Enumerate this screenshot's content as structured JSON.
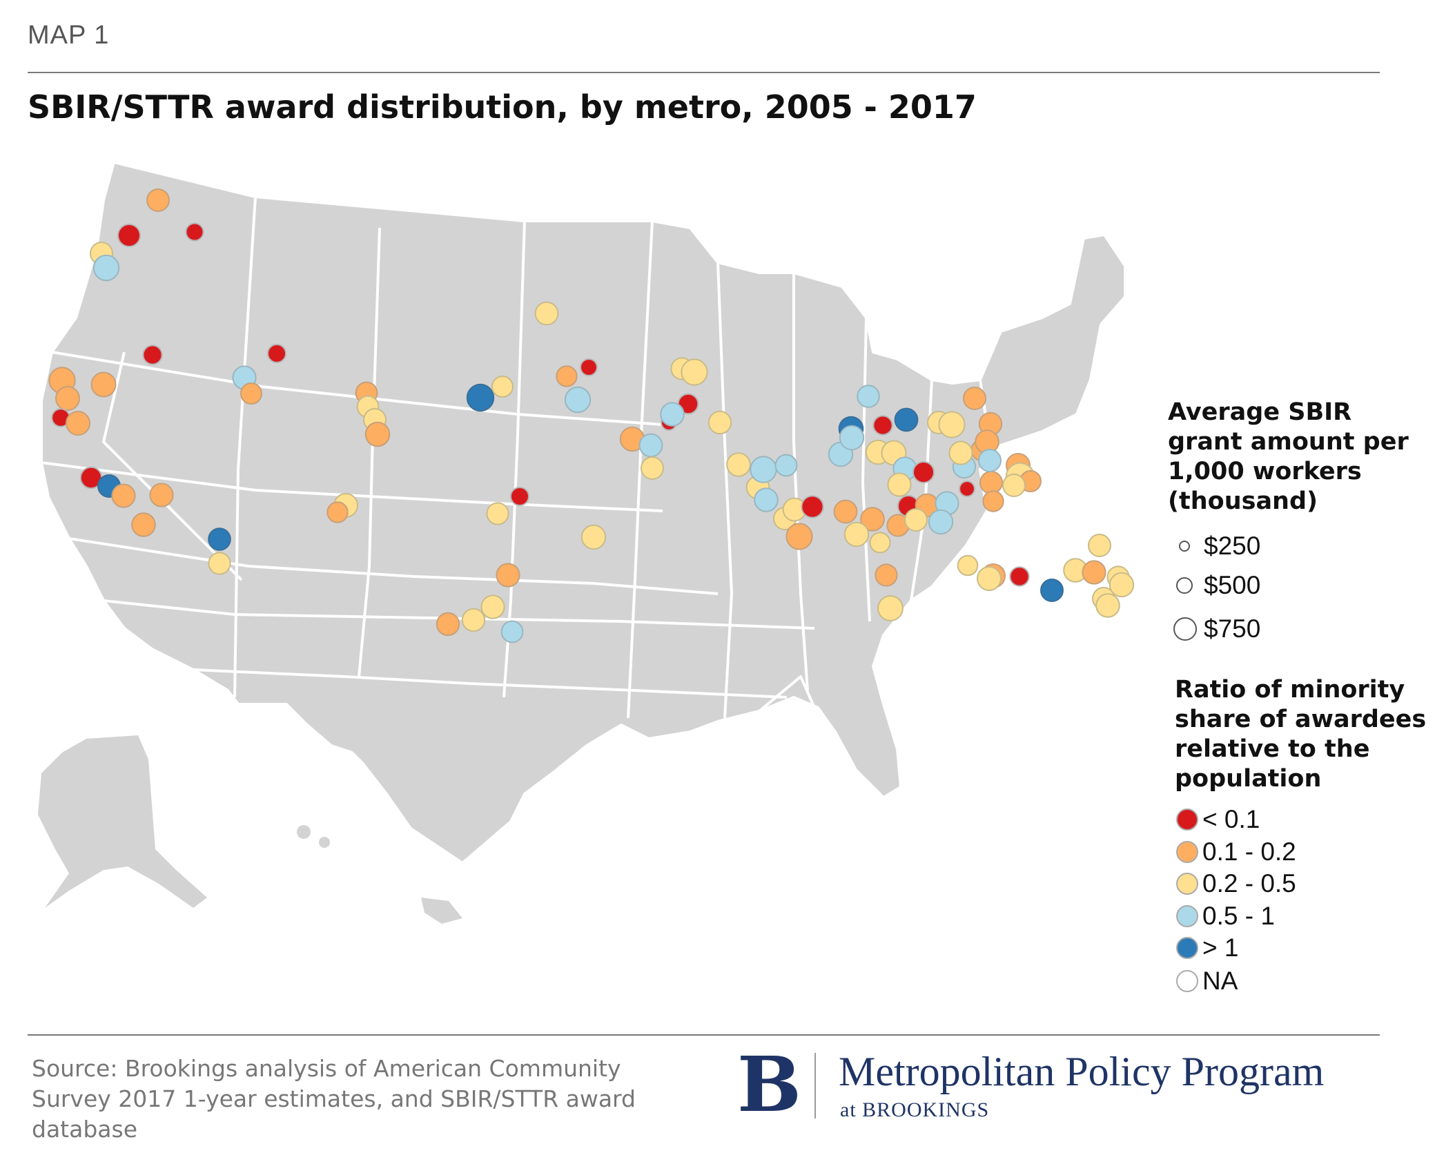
{
  "header": {
    "map_label": "MAP 1",
    "title": "SBIR/STTR award distribution, by metro, 2005 - 2017"
  },
  "legend": {
    "size_title": "Average SBIR grant amount per 1,000 workers (thousand)",
    "size_title_lines": [
      "Average SBIR",
      "grant amount per",
      "1,000 workers",
      "(thousand)"
    ],
    "sizes": [
      {
        "label": "$250",
        "value": 250
      },
      {
        "label": "$500",
        "value": 500
      },
      {
        "label": "$750",
        "value": 750
      }
    ],
    "color_title": "Ratio of minority share of awardees relative to the population",
    "color_title_lines": [
      "Ratio of minority",
      "share of awardees",
      "relative to the",
      "population"
    ],
    "colors": [
      {
        "label": "< 0.1",
        "color": "#d7191c"
      },
      {
        "label": "0.1 - 0.2",
        "color": "#fdae61"
      },
      {
        "label": "0.2 - 0.5",
        "color": "#fee090"
      },
      {
        "label": "0.5 - 1",
        "color": "#abd9e9"
      },
      {
        "label": "> 1",
        "color": "#2c7bb6"
      },
      {
        "label": "NA",
        "color": "#ffffff"
      }
    ]
  },
  "map": {
    "land_color": "#d3d3d3",
    "border_color": "#ffffff",
    "metros": [
      {
        "category": 1,
        "amount": 300
      },
      {
        "category": 0,
        "amount": 300
      },
      {
        "category": 0,
        "amount": 150
      },
      {
        "category": 2,
        "amount": 300
      },
      {
        "category": 3,
        "amount": 420
      },
      {
        "category": 0,
        "amount": 190
      },
      {
        "category": 1,
        "amount": 450
      },
      {
        "category": 1,
        "amount": 380
      },
      {
        "category": 1,
        "amount": 350
      },
      {
        "category": 0,
        "amount": 160
      },
      {
        "category": 1,
        "amount": 350
      },
      {
        "category": 0,
        "amount": 260
      },
      {
        "category": 4,
        "amount": 300
      },
      {
        "category": 1,
        "amount": 330
      },
      {
        "category": 1,
        "amount": 330
      },
      {
        "category": 1,
        "amount": 340
      },
      {
        "category": 0,
        "amount": 170
      },
      {
        "category": 3,
        "amount": 330
      },
      {
        "category": 1,
        "amount": 250
      },
      {
        "category": 1,
        "amount": 270
      },
      {
        "category": 2,
        "amount": 270
      },
      {
        "category": 2,
        "amount": 300
      },
      {
        "category": 1,
        "amount": 370
      },
      {
        "category": 2,
        "amount": 350
      },
      {
        "category": 1,
        "amount": 240
      },
      {
        "category": 4,
        "amount": 290
      },
      {
        "category": 2,
        "amount": 280
      },
      {
        "category": 4,
        "amount": 480
      },
      {
        "category": 2,
        "amount": 250
      },
      {
        "category": 2,
        "amount": 320
      },
      {
        "category": 0,
        "amount": 130
      },
      {
        "category": 1,
        "amount": 240
      },
      {
        "category": 3,
        "amount": 420
      },
      {
        "category": 1,
        "amount": 360
      },
      {
        "category": 3,
        "amount": 320
      },
      {
        "category": 2,
        "amount": 360
      },
      {
        "category": 0,
        "amount": 170
      },
      {
        "category": 2,
        "amount": 280
      },
      {
        "category": 1,
        "amount": 330
      },
      {
        "category": 2,
        "amount": 330
      },
      {
        "category": 2,
        "amount": 310
      },
      {
        "category": 1,
        "amount": 310
      },
      {
        "category": 3,
        "amount": 270
      },
      {
        "category": 0,
        "amount": 100
      },
      {
        "category": 2,
        "amount": 280
      },
      {
        "category": 2,
        "amount": 440
      },
      {
        "category": 2,
        "amount": 300
      },
      {
        "category": 0,
        "amount": 220
      },
      {
        "category": 3,
        "amount": 340
      },
      {
        "category": 2,
        "amount": 310
      },
      {
        "category": 2,
        "amount": 340
      },
      {
        "category": 2,
        "amount": 320
      },
      {
        "category": 3,
        "amount": 450
      },
      {
        "category": 3,
        "amount": 340
      },
      {
        "category": 3,
        "amount": 270
      },
      {
        "category": 2,
        "amount": 300
      },
      {
        "category": 2,
        "amount": 320
      },
      {
        "category": 0,
        "amount": 280
      },
      {
        "category": 1,
        "amount": 440
      },
      {
        "category": 3,
        "amount": 360
      },
      {
        "category": 4,
        "amount": 370
      },
      {
        "category": 3,
        "amount": 290
      },
      {
        "category": 3,
        "amount": 360
      },
      {
        "category": 2,
        "amount": 360
      },
      {
        "category": 2,
        "amount": 380
      },
      {
        "category": 3,
        "amount": 330
      },
      {
        "category": 2,
        "amount": 330
      },
      {
        "category": 1,
        "amount": 320
      },
      {
        "category": 1,
        "amount": 340
      },
      {
        "category": 2,
        "amount": 360
      },
      {
        "category": 2,
        "amount": 230
      },
      {
        "category": 1,
        "amount": 280
      },
      {
        "category": 0,
        "amount": 250
      },
      {
        "category": 1,
        "amount": 320
      },
      {
        "category": 2,
        "amount": 300
      },
      {
        "category": 3,
        "amount": 330
      },
      {
        "category": 3,
        "amount": 360
      },
      {
        "category": 1,
        "amount": 280
      },
      {
        "category": 2,
        "amount": 400
      },
      {
        "category": 3,
        "amount": 310
      },
      {
        "category": 1,
        "amount": 280
      },
      {
        "category": 0,
        "amount": 100
      },
      {
        "category": 1,
        "amount": 300
      },
      {
        "category": 1,
        "amount": 350
      },
      {
        "category": 2,
        "amount": 560
      },
      {
        "category": 1,
        "amount": 250
      },
      {
        "category": 2,
        "amount": 330
      },
      {
        "category": 0,
        "amount": 250
      },
      {
        "category": 0,
        "amount": 190
      },
      {
        "category": 4,
        "amount": 320
      },
      {
        "category": 2,
        "amount": 300
      },
      {
        "category": 2,
        "amount": 440
      },
      {
        "category": 1,
        "amount": 300
      },
      {
        "category": 1,
        "amount": 310
      },
      {
        "category": 1,
        "amount": 340
      },
      {
        "category": 3,
        "amount": 300
      },
      {
        "category": 1,
        "amount": 240
      },
      {
        "category": 2,
        "amount": 300
      },
      {
        "category": 1,
        "amount": 350
      },
      {
        "category": 2,
        "amount": 220
      },
      {
        "category": 2,
        "amount": 350
      },
      {
        "category": 0,
        "amount": 190
      },
      {
        "category": 4,
        "amount": 300
      },
      {
        "category": 2,
        "amount": 300
      },
      {
        "category": 2,
        "amount": 340
      },
      {
        "category": 1,
        "amount": 330
      },
      {
        "category": 2,
        "amount": 280
      },
      {
        "category": 2,
        "amount": 300
      },
      {
        "category": 2,
        "amount": 360
      },
      {
        "category": 2,
        "amount": 340
      }
    ]
  },
  "footer": {
    "source": "Source: Brookings analysis of American Community Survey 2017 1-year estimates, and SBIR/STTR award database",
    "logo_letter": "B",
    "logo_program": "Metropolitan Policy Program",
    "logo_sub": "at BROOKINGS"
  }
}
